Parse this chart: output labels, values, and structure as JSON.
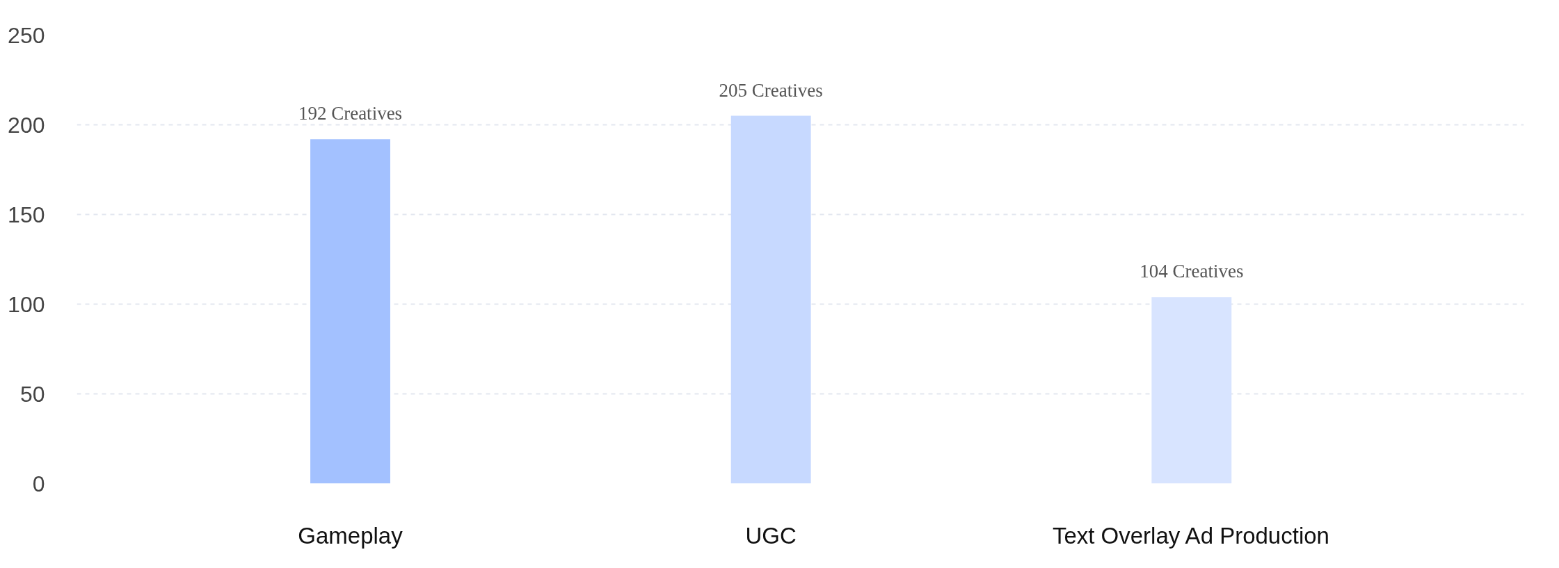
{
  "chart_data": {
    "type": "bar",
    "categories": [
      "Gameplay",
      "UGC",
      "Text Overlay Ad Production"
    ],
    "values": [
      192,
      205,
      104
    ],
    "colors": [
      "#a3c1ff",
      "#c7d9ff",
      "#d8e4ff"
    ],
    "value_labels": [
      "192 Creatives",
      "205 Creatives",
      "104 Creatives"
    ],
    "ylim": [
      0,
      250
    ],
    "yticks": [
      0,
      50,
      100,
      150,
      200,
      250
    ],
    "grid": "y"
  }
}
